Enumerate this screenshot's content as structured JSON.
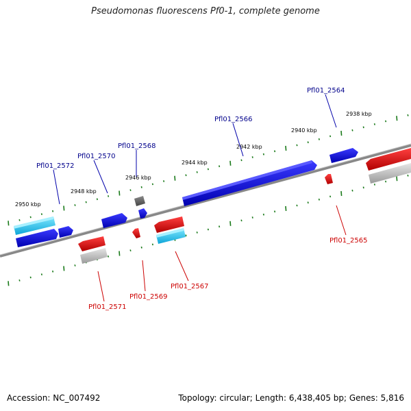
{
  "title": "Pseudomonas fluorescens Pf0-1, complete genome",
  "footer": {
    "accession": "Accession: NC_007492",
    "summary": "Topology: circular; Length: 6,438,405 bp; Genes: 5,816"
  },
  "scale_labels": [
    "2950 kbp",
    "2948 kbp",
    "2946 kbp",
    "2944 kbp",
    "2942 kbp",
    "2940 kbp",
    "2938 kbp"
  ],
  "genes_forward": [
    "Pfl01_2572",
    "Pfl01_2570",
    "Pfl01_2568",
    "Pfl01_2566",
    "Pfl01_2564"
  ],
  "genes_reverse": [
    "Pfl01_2571",
    "Pfl01_2569",
    "Pfl01_2567",
    "Pfl01_2565"
  ],
  "colors": {
    "forward_label": "#00008b",
    "reverse_label": "#cc0000",
    "forward_gene": "#0000dd",
    "reverse_gene": "#ee0000",
    "rna_forward": "#22c8ee",
    "rna_reverse": "#bbbbbb",
    "tick": "#1a7a1a",
    "backbone": "#888888"
  }
}
